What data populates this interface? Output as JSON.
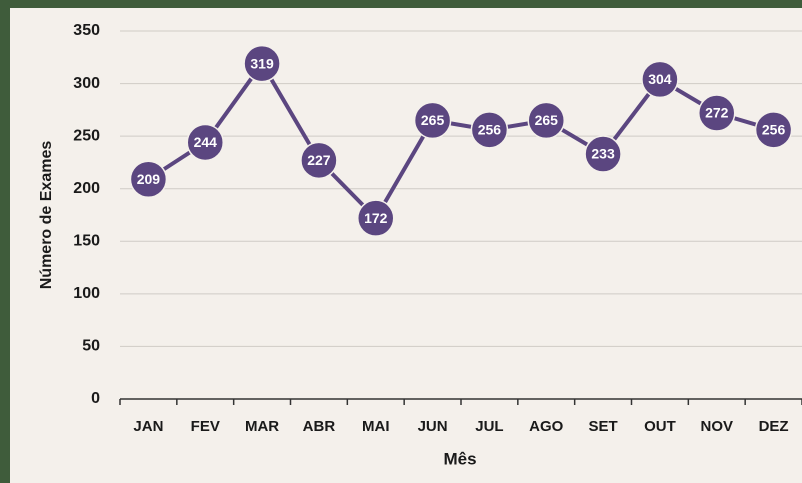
{
  "chart_data": {
    "type": "line",
    "x_label": "Mês",
    "y_label": "Número de Exames",
    "categories": [
      "JAN",
      "FEV",
      "MAR",
      "ABR",
      "MAI",
      "JUN",
      "JUL",
      "AGO",
      "SET",
      "OUT",
      "NOV",
      "DEZ"
    ],
    "series": [
      {
        "name": "Número de Exames",
        "color": "#5b4680",
        "values": [
          209,
          244,
          319,
          227,
          172,
          265,
          256,
          265,
          233,
          304,
          272,
          256
        ]
      }
    ],
    "ylim": [
      0,
      350
    ],
    "yticks": [
      0,
      50,
      100,
      150,
      200,
      250,
      300,
      350
    ],
    "grid": true
  }
}
